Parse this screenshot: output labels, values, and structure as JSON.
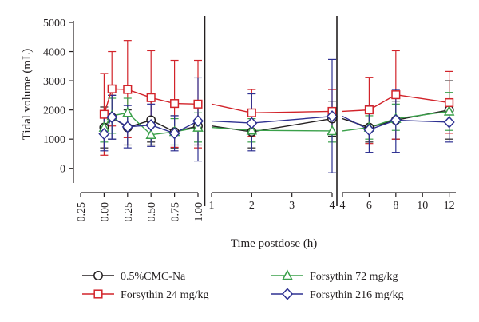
{
  "chart_data": {
    "type": "line",
    "title": "",
    "ylabel": "Tidal volume (mL)",
    "xlabel": "Time postdose (h)",
    "ylim": [
      -500,
      5000
    ],
    "yticks": [
      0,
      1000,
      2000,
      3000,
      4000,
      5000
    ],
    "colors": {
      "axis": "#231f20"
    },
    "panels": [
      {
        "xlim": [
          -0.25,
          1.0
        ],
        "xticks": [
          -0.25,
          0.0,
          0.25,
          0.5,
          0.75,
          1.0
        ],
        "xticklabels": [
          "−0.25",
          "0.00",
          "0.25",
          "0.50",
          "0.75",
          "1.00"
        ]
      },
      {
        "xlim": [
          1,
          4
        ],
        "xticks": [
          1,
          2,
          3,
          4
        ],
        "xticklabels": [
          "1",
          "2",
          "3",
          "4"
        ]
      },
      {
        "xlim": [
          4,
          12.5
        ],
        "xticks": [
          4,
          6,
          8,
          10,
          12
        ],
        "xticklabels": [
          "4",
          "6",
          "8",
          "10",
          "12"
        ]
      }
    ],
    "series": [
      {
        "name": "0.5%CMC-Na",
        "color": "#231f20",
        "marker": "circle",
        "segments": [
          [
            {
              "x": 0,
              "y": 1400,
              "lo": 700,
              "hi": 2100
            },
            {
              "x": 0.0833,
              "y": 1750,
              "lo": 1000,
              "hi": 2500
            },
            {
              "x": 0.25,
              "y": 1400,
              "lo": 800,
              "hi": 2000
            },
            {
              "x": 0.5,
              "y": 1650,
              "lo": 900,
              "hi": 2400
            },
            {
              "x": 0.75,
              "y": 1250,
              "lo": 700,
              "hi": 1800
            },
            {
              "x": 1,
              "y": 1450,
              "lo": 800,
              "hi": 2100
            }
          ],
          [
            {
              "x": 1,
              "y": 1450
            },
            {
              "x": 2,
              "y": 1250,
              "lo": 700,
              "hi": 1800
            },
            {
              "x": 4,
              "y": 1700,
              "lo": 1100,
              "hi": 2300
            }
          ],
          [
            {
              "x": 4,
              "y": 1700
            },
            {
              "x": 6,
              "y": 1400,
              "lo": 900,
              "hi": 1900
            },
            {
              "x": 8,
              "y": 1650,
              "lo": 1000,
              "hi": 2300
            },
            {
              "x": 12,
              "y": 2000,
              "lo": 1000,
              "hi": 3000
            }
          ]
        ]
      },
      {
        "name": "Forsythin 24 mg/kg",
        "color": "#d2232a",
        "marker": "square",
        "segments": [
          [
            {
              "x": 0,
              "y": 1850,
              "lo": 450,
              "hi": 3250
            },
            {
              "x": 0.0833,
              "y": 2720,
              "lo": 1450,
              "hi": 4000
            },
            {
              "x": 0.25,
              "y": 2700,
              "lo": 1050,
              "hi": 4380
            },
            {
              "x": 0.5,
              "y": 2420,
              "lo": 800,
              "hi": 4030
            },
            {
              "x": 0.75,
              "y": 2220,
              "lo": 720,
              "hi": 3700
            },
            {
              "x": 1,
              "y": 2200,
              "lo": 700,
              "hi": 3700
            }
          ],
          [
            {
              "x": 1,
              "y": 2200
            },
            {
              "x": 2,
              "y": 1900,
              "lo": 1100,
              "hi": 2700
            },
            {
              "x": 4,
              "y": 1950,
              "lo": 1200,
              "hi": 2700
            }
          ],
          [
            {
              "x": 4,
              "y": 1950
            },
            {
              "x": 6,
              "y": 2000,
              "lo": 850,
              "hi": 3120
            },
            {
              "x": 8,
              "y": 2520,
              "lo": 1000,
              "hi": 4030
            },
            {
              "x": 12,
              "y": 2250,
              "lo": 1200,
              "hi": 3320
            }
          ]
        ]
      },
      {
        "name": "Forsythin 72 mg/kg",
        "color": "#3aa04a",
        "marker": "triangle",
        "segments": [
          [
            {
              "x": 0,
              "y": 1400,
              "lo": 900,
              "hi": 1900
            },
            {
              "x": 0.0833,
              "y": 1800,
              "lo": 1200,
              "hi": 2400
            },
            {
              "x": 0.25,
              "y": 1900,
              "lo": 1400,
              "hi": 2400
            },
            {
              "x": 0.5,
              "y": 1150,
              "lo": 800,
              "hi": 1500
            },
            {
              "x": 0.75,
              "y": 1250,
              "lo": 800,
              "hi": 1700
            },
            {
              "x": 1,
              "y": 1400,
              "lo": 900,
              "hi": 1900
            }
          ],
          [
            {
              "x": 1,
              "y": 1400
            },
            {
              "x": 2,
              "y": 1300,
              "lo": 900,
              "hi": 1700
            },
            {
              "x": 4,
              "y": 1280,
              "lo": 900,
              "hi": 1650
            }
          ],
          [
            {
              "x": 4,
              "y": 1280
            },
            {
              "x": 6,
              "y": 1400,
              "lo": 1000,
              "hi": 1800
            },
            {
              "x": 8,
              "y": 1700,
              "lo": 1300,
              "hi": 2200
            },
            {
              "x": 12,
              "y": 1950,
              "lo": 1300,
              "hi": 2600
            }
          ]
        ]
      },
      {
        "name": "Forsythin 216 mg/kg",
        "color": "#2e3192",
        "marker": "diamond",
        "segments": [
          [
            {
              "x": 0,
              "y": 1180,
              "lo": 600,
              "hi": 1750
            },
            {
              "x": 0.0833,
              "y": 1750,
              "lo": 1000,
              "hi": 2500
            },
            {
              "x": 0.25,
              "y": 1420,
              "lo": 700,
              "hi": 2150
            },
            {
              "x": 0.5,
              "y": 1480,
              "lo": 750,
              "hi": 2200
            },
            {
              "x": 0.75,
              "y": 1200,
              "lo": 600,
              "hi": 1800
            },
            {
              "x": 1,
              "y": 1620,
              "lo": 250,
              "hi": 3100
            }
          ],
          [
            {
              "x": 1,
              "y": 1620
            },
            {
              "x": 2,
              "y": 1550,
              "lo": 600,
              "hi": 2550
            },
            {
              "x": 4,
              "y": 1780,
              "lo": -150,
              "hi": 3730
            }
          ],
          [
            {
              "x": 4,
              "y": 1780
            },
            {
              "x": 6,
              "y": 1320,
              "lo": 550,
              "hi": 2150
            },
            {
              "x": 8,
              "y": 1650,
              "lo": 550,
              "hi": 2700
            },
            {
              "x": 12,
              "y": 1580,
              "lo": 900,
              "hi": 2300
            }
          ]
        ]
      }
    ],
    "legend": {
      "placement": "bottom",
      "entries": [
        {
          "label": "0.5%CMC-Na",
          "series": 0
        },
        {
          "label": "Forsythin 72 mg/kg",
          "series": 2
        },
        {
          "label": "Forsythin 24 mg/kg",
          "series": 1
        },
        {
          "label": "Forsythin 216 mg/kg",
          "series": 3
        }
      ]
    }
  }
}
